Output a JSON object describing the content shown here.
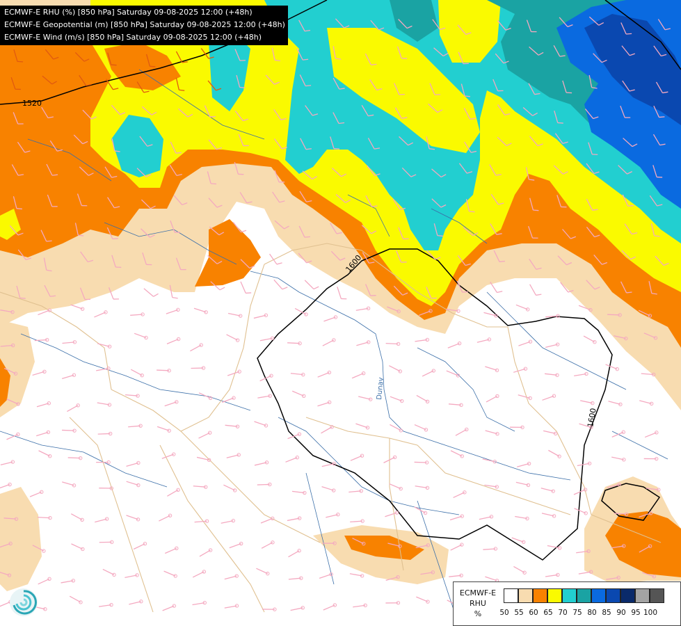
{
  "header": {
    "lines": [
      "ECMWF-E RHU (%) [850 hPa] Saturday 09-08-2025 12:00 (+48h)",
      "ECMWF-E Geopotential (m) [850 hPa] Saturday 09-08-2025 12:00 (+48h)",
      "ECMWF-E Wind (m/s) [850 hPa] Saturday 09-08-2025 12:00 (+48h)"
    ]
  },
  "contours": {
    "label_1520": "1520",
    "label_1600_a": "1600",
    "label_1600_b": "1600"
  },
  "map": {
    "river_label": "Dunav"
  },
  "legend": {
    "line1": "ECMWF-E",
    "line2": "RHU",
    "line3": "%",
    "colors": [
      "#ffffff",
      "#f8dcb0",
      "#f88200",
      "#fafa00",
      "#22cfd0",
      "#1aa3a3",
      "#0a6ae0",
      "#0a48b0",
      "#0a2a6a",
      "#a3a3a3",
      "#555555"
    ],
    "ticks": [
      "50",
      "55",
      "60",
      "65",
      "70",
      "75",
      "80",
      "85",
      "90",
      "95",
      "100"
    ]
  },
  "logo_icon": "ecmwf-swirl-icon"
}
